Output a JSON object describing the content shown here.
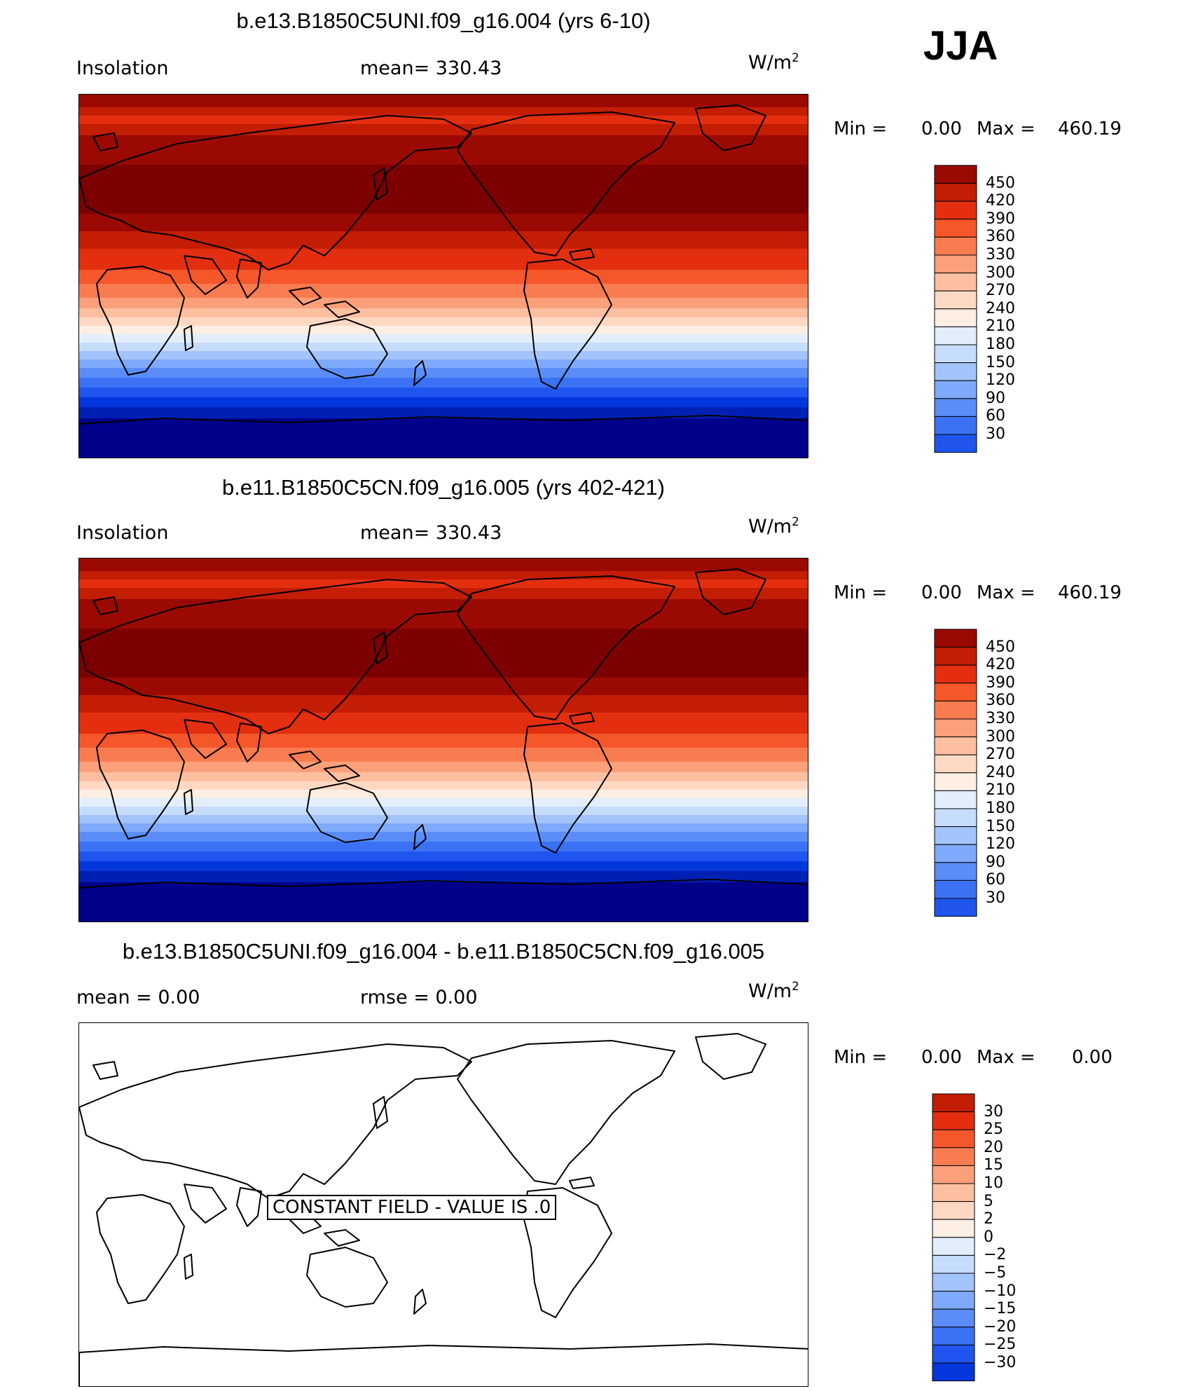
{
  "season": "JJA",
  "palette_warm": [
    "#00008b",
    "#0020b4",
    "#0336dc",
    "#1f55ee",
    "#3b72f5",
    "#5a8df8",
    "#7fa9fa",
    "#a3c3fb",
    "#c6dcfc",
    "#e3eefd",
    "#fdeee3",
    "#fdd9c4",
    "#fcbfa0",
    "#fba07a",
    "#f97c50",
    "#f5562a",
    "#e32f10",
    "#c31d04",
    "#9a0a02",
    "#7d0000"
  ],
  "panels": [
    {
      "title": "b.e13.B1850C5UNI.f09_g16.004 (yrs 6-10)",
      "left_label": "Insolation",
      "center_label": "mean=  330.43",
      "units_base": "W/m",
      "units_exp": "2",
      "minmax": {
        "min_label": "Min  =",
        "min_value": "0.00",
        "max_label": "Max  =",
        "max_value": "460.19"
      },
      "colorbar": {
        "levels": [
          "450",
          "420",
          "390",
          "360",
          "330",
          "300",
          "270",
          "240",
          "210",
          "180",
          "150",
          "120",
          "90",
          "60",
          "30"
        ]
      },
      "chart_data": {
        "type": "heatmap",
        "field": "Insolation",
        "units": "W/m2",
        "mean": 330.43,
        "min": 0.0,
        "max": 460.19,
        "levels": [
          30,
          60,
          90,
          120,
          150,
          180,
          210,
          240,
          270,
          300,
          330,
          360,
          390,
          420,
          450
        ]
      }
    },
    {
      "title": "b.e11.B1850C5CN.f09_g16.005 (yrs 402-421)",
      "left_label": "Insolation",
      "center_label": "mean=  330.43",
      "units_base": "W/m",
      "units_exp": "2",
      "minmax": {
        "min_label": "Min  =",
        "min_value": "0.00",
        "max_label": "Max  =",
        "max_value": "460.19"
      },
      "colorbar": {
        "levels": [
          "450",
          "420",
          "390",
          "360",
          "330",
          "300",
          "270",
          "240",
          "210",
          "180",
          "150",
          "120",
          "90",
          "60",
          "30"
        ]
      },
      "chart_data": {
        "type": "heatmap",
        "field": "Insolation",
        "units": "W/m2",
        "mean": 330.43,
        "min": 0.0,
        "max": 460.19,
        "levels": [
          30,
          60,
          90,
          120,
          150,
          180,
          210,
          240,
          270,
          300,
          330,
          360,
          390,
          420,
          450
        ]
      }
    },
    {
      "title": "b.e13.B1850C5UNI.f09_g16.004 - b.e11.B1850C5CN.f09_g16.005",
      "left_label": "mean  =      0.00",
      "center_label": "rmse  =      0.00",
      "units_base": "W/m",
      "units_exp": "2",
      "minmax": {
        "min_label": "Min  =",
        "min_value": "0.00",
        "max_label": "Max  =",
        "max_value": "0.00"
      },
      "constant_field": "CONSTANT FIELD - VALUE IS .0",
      "colorbar": {
        "levels": [
          "30",
          "25",
          "20",
          "15",
          "10",
          "5",
          "2",
          "0",
          "−2",
          "−5",
          "−10",
          "−15",
          "−20",
          "−25",
          "−30"
        ]
      },
      "chart_data": {
        "type": "heatmap",
        "field": "difference",
        "units": "W/m2",
        "mean": 0.0,
        "rmse": 0.0,
        "min": 0.0,
        "max": 0.0,
        "levels": [
          -30,
          -25,
          -20,
          -15,
          -10,
          -5,
          -2,
          0,
          2,
          5,
          10,
          15,
          20,
          25,
          30
        ]
      }
    }
  ]
}
